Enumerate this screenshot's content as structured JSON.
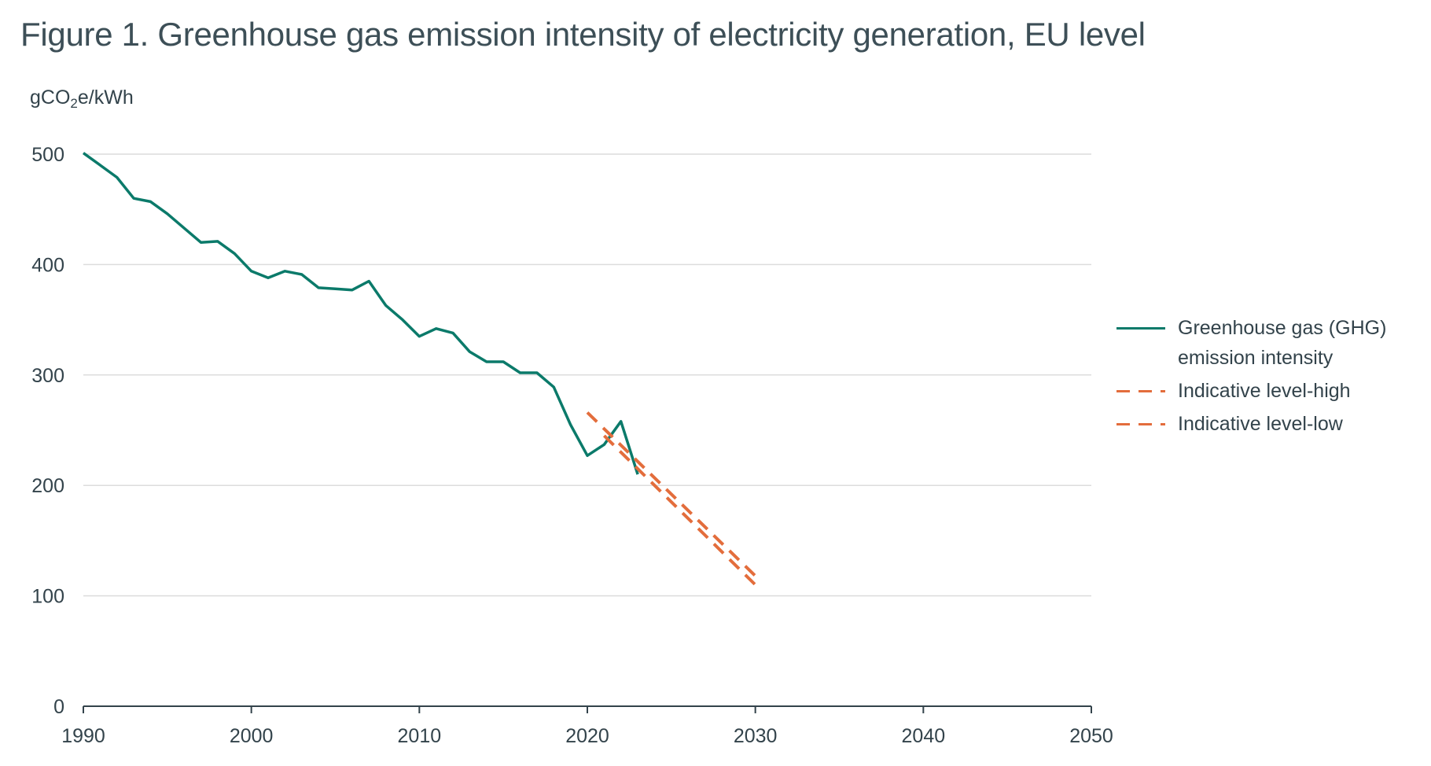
{
  "title": "Figure 1. Greenhouse gas emission intensity of electricity generation, EU level",
  "unit_label": {
    "main": "gCO",
    "sub": "2",
    "rest": "e/kWh"
  },
  "colors": {
    "ghg": "#0b7a6a",
    "indicative": "#e36d3c",
    "grid": "#dcdcdc",
    "axis": "#33434b"
  },
  "chart_data": {
    "type": "line",
    "title": "Figure 1. Greenhouse gas emission intensity of electricity generation, EU level",
    "xlabel": "",
    "ylabel": "gCO2e/kWh",
    "xlim": [
      1990,
      2050
    ],
    "ylim": [
      0,
      500
    ],
    "x_ticks": [
      1990,
      2000,
      2010,
      2020,
      2030,
      2040,
      2050
    ],
    "y_ticks": [
      0,
      100,
      200,
      300,
      400,
      500
    ],
    "grid": "horizontal",
    "legend_position": "right",
    "series": [
      {
        "name": "Greenhouse gas (GHG) emission intensity",
        "style": "solid",
        "x": [
          1990,
          1991,
          1992,
          1993,
          1994,
          1995,
          1996,
          1997,
          1998,
          1999,
          2000,
          2001,
          2002,
          2003,
          2004,
          2005,
          2006,
          2007,
          2008,
          2009,
          2010,
          2011,
          2012,
          2013,
          2014,
          2015,
          2016,
          2017,
          2018,
          2019,
          2020,
          2021,
          2022,
          2023
        ],
        "y": [
          501,
          490,
          479,
          460,
          457,
          446,
          433,
          420,
          421,
          410,
          394,
          388,
          394,
          391,
          379,
          378,
          377,
          385,
          363,
          350,
          335,
          342,
          338,
          321,
          312,
          312,
          302,
          302,
          289,
          255,
          227,
          237,
          258,
          210
        ]
      },
      {
        "name": "Indicative level-high",
        "style": "dashed",
        "x": [
          2020,
          2030
        ],
        "y": [
          266,
          118
        ]
      },
      {
        "name": "Indicative level-low",
        "style": "dashed",
        "x": [
          2021,
          2030
        ],
        "y": [
          245,
          110
        ]
      }
    ]
  }
}
